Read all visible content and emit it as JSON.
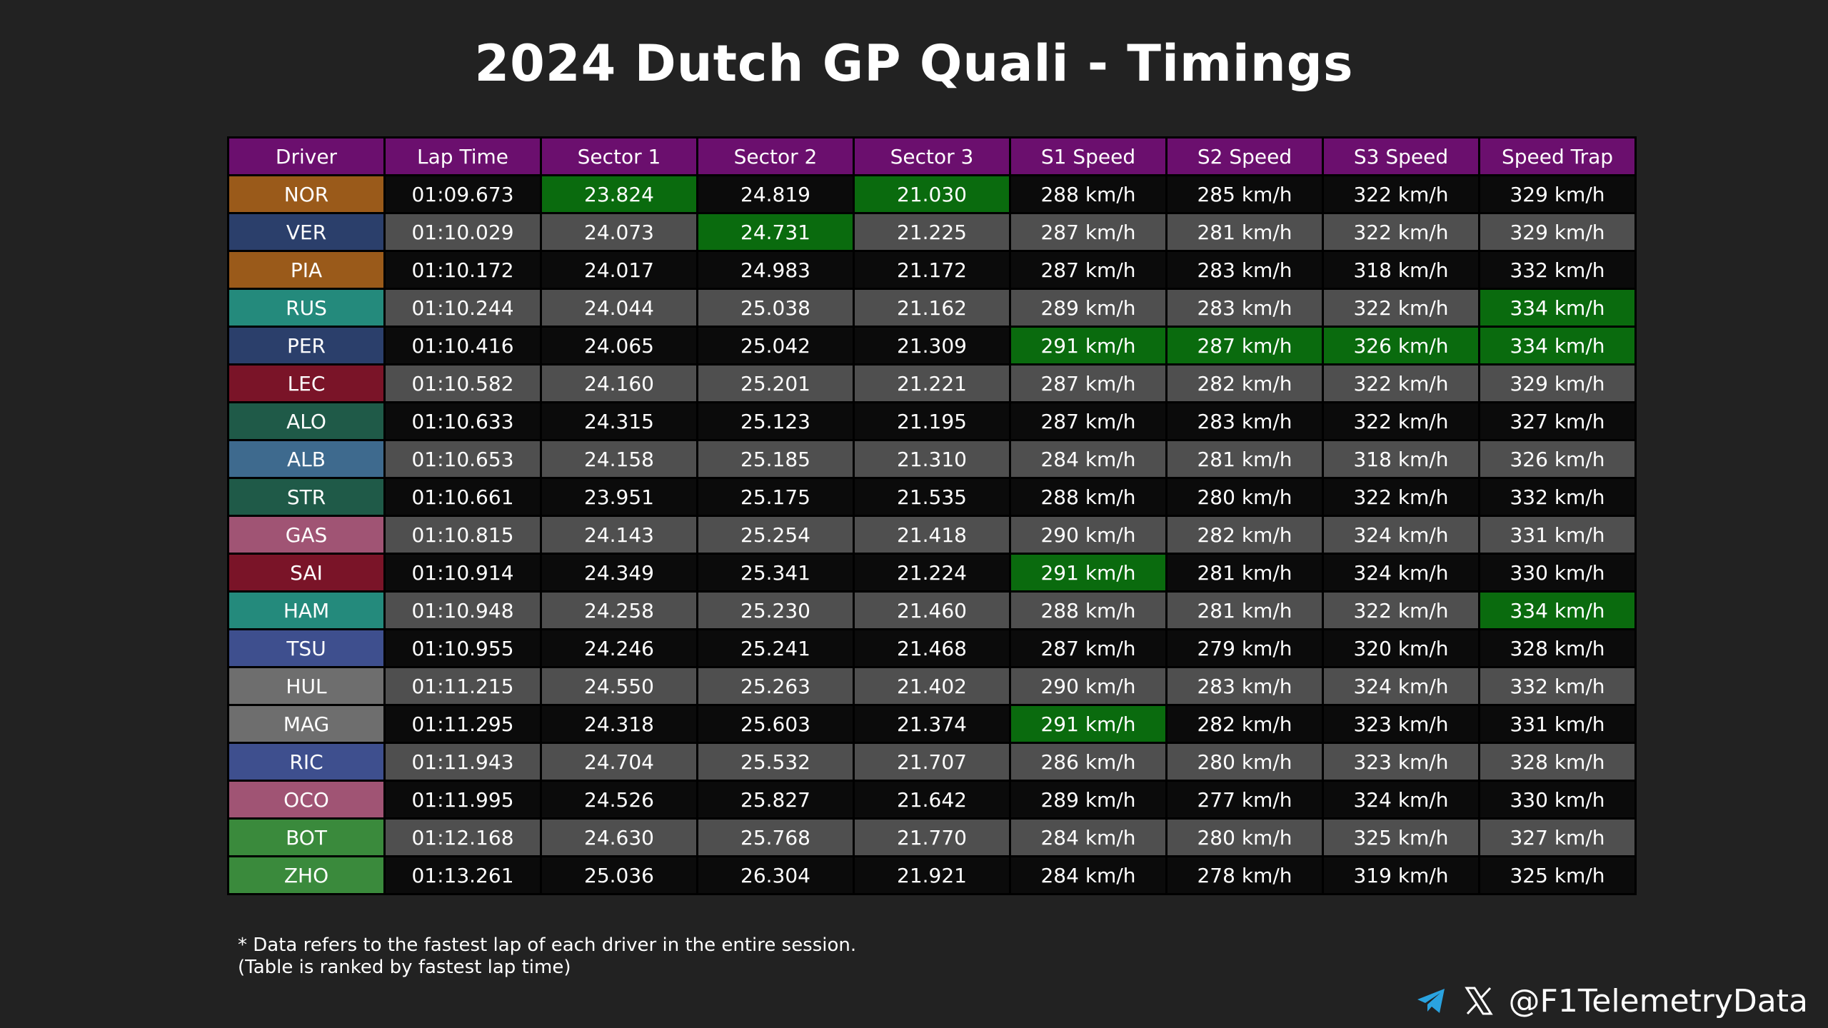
{
  "title": "2024 Dutch GP Quali - Timings",
  "colors": {
    "header_bg": "#6b0f6e",
    "best_green": "#0a6b0e",
    "row_dark": "#0b0b0b",
    "row_light": "#4f4f4f",
    "background": "#222222"
  },
  "chart_data": {
    "type": "table",
    "title": "2024 Dutch GP Quali - Timings",
    "columns": [
      "Driver",
      "Lap Time",
      "Sector 1",
      "Sector 2",
      "Sector 3",
      "S1 Speed",
      "S2 Speed",
      "S3 Speed",
      "Speed Trap"
    ],
    "rows": [
      {
        "driver": "NOR",
        "team_color": "#9a5a1a",
        "cells": [
          "01:09.673",
          "23.824",
          "24.819",
          "21.030",
          "288 km/h",
          "285 km/h",
          "322 km/h",
          "329 km/h"
        ],
        "best": [
          false,
          true,
          false,
          true,
          false,
          false,
          false,
          false
        ]
      },
      {
        "driver": "VER",
        "team_color": "#2b3f6b",
        "cells": [
          "01:10.029",
          "24.073",
          "24.731",
          "21.225",
          "287 km/h",
          "281 km/h",
          "322 km/h",
          "329 km/h"
        ],
        "best": [
          false,
          false,
          true,
          false,
          false,
          false,
          false,
          false
        ]
      },
      {
        "driver": "PIA",
        "team_color": "#9a5a1a",
        "cells": [
          "01:10.172",
          "24.017",
          "24.983",
          "21.172",
          "287 km/h",
          "283 km/h",
          "318 km/h",
          "332 km/h"
        ],
        "best": [
          false,
          false,
          false,
          false,
          false,
          false,
          false,
          false
        ]
      },
      {
        "driver": "RUS",
        "team_color": "#248a7c",
        "cells": [
          "01:10.244",
          "24.044",
          "25.038",
          "21.162",
          "289 km/h",
          "283 km/h",
          "322 km/h",
          "334 km/h"
        ],
        "best": [
          false,
          false,
          false,
          false,
          false,
          false,
          false,
          true
        ]
      },
      {
        "driver": "PER",
        "team_color": "#2b3f6b",
        "cells": [
          "01:10.416",
          "24.065",
          "25.042",
          "21.309",
          "291 km/h",
          "287 km/h",
          "326 km/h",
          "334 km/h"
        ],
        "best": [
          false,
          false,
          false,
          false,
          true,
          true,
          true,
          true
        ]
      },
      {
        "driver": "LEC",
        "team_color": "#7a1428",
        "cells": [
          "01:10.582",
          "24.160",
          "25.201",
          "21.221",
          "287 km/h",
          "282 km/h",
          "322 km/h",
          "329 km/h"
        ],
        "best": [
          false,
          false,
          false,
          false,
          false,
          false,
          false,
          false
        ]
      },
      {
        "driver": "ALO",
        "team_color": "#1f5a48",
        "cells": [
          "01:10.633",
          "24.315",
          "25.123",
          "21.195",
          "287 km/h",
          "283 km/h",
          "322 km/h",
          "327 km/h"
        ],
        "best": [
          false,
          false,
          false,
          false,
          false,
          false,
          false,
          false
        ]
      },
      {
        "driver": "ALB",
        "team_color": "#3e6a8e",
        "cells": [
          "01:10.653",
          "24.158",
          "25.185",
          "21.310",
          "284 km/h",
          "281 km/h",
          "318 km/h",
          "326 km/h"
        ],
        "best": [
          false,
          false,
          false,
          false,
          false,
          false,
          false,
          false
        ]
      },
      {
        "driver": "STR",
        "team_color": "#1f5a48",
        "cells": [
          "01:10.661",
          "23.951",
          "25.175",
          "21.535",
          "288 km/h",
          "280 km/h",
          "322 km/h",
          "332 km/h"
        ],
        "best": [
          false,
          false,
          false,
          false,
          false,
          false,
          false,
          false
        ]
      },
      {
        "driver": "GAS",
        "team_color": "#a05474",
        "cells": [
          "01:10.815",
          "24.143",
          "25.254",
          "21.418",
          "290 km/h",
          "282 km/h",
          "324 km/h",
          "331 km/h"
        ],
        "best": [
          false,
          false,
          false,
          false,
          false,
          false,
          false,
          false
        ]
      },
      {
        "driver": "SAI",
        "team_color": "#7a1428",
        "cells": [
          "01:10.914",
          "24.349",
          "25.341",
          "21.224",
          "291 km/h",
          "281 km/h",
          "324 km/h",
          "330 km/h"
        ],
        "best": [
          false,
          false,
          false,
          false,
          true,
          false,
          false,
          false
        ]
      },
      {
        "driver": "HAM",
        "team_color": "#248a7c",
        "cells": [
          "01:10.948",
          "24.258",
          "25.230",
          "21.460",
          "288 km/h",
          "281 km/h",
          "322 km/h",
          "334 km/h"
        ],
        "best": [
          false,
          false,
          false,
          false,
          false,
          false,
          false,
          true
        ]
      },
      {
        "driver": "TSU",
        "team_color": "#3e4f8e",
        "cells": [
          "01:10.955",
          "24.246",
          "25.241",
          "21.468",
          "287 km/h",
          "279 km/h",
          "320 km/h",
          "328 km/h"
        ],
        "best": [
          false,
          false,
          false,
          false,
          false,
          false,
          false,
          false
        ]
      },
      {
        "driver": "HUL",
        "team_color": "#6e6e6e",
        "cells": [
          "01:11.215",
          "24.550",
          "25.263",
          "21.402",
          "290 km/h",
          "283 km/h",
          "324 km/h",
          "332 km/h"
        ],
        "best": [
          false,
          false,
          false,
          false,
          false,
          false,
          false,
          false
        ]
      },
      {
        "driver": "MAG",
        "team_color": "#6e6e6e",
        "cells": [
          "01:11.295",
          "24.318",
          "25.603",
          "21.374",
          "291 km/h",
          "282 km/h",
          "323 km/h",
          "331 km/h"
        ],
        "best": [
          false,
          false,
          false,
          false,
          true,
          false,
          false,
          false
        ]
      },
      {
        "driver": "RIC",
        "team_color": "#3e4f8e",
        "cells": [
          "01:11.943",
          "24.704",
          "25.532",
          "21.707",
          "286 km/h",
          "280 km/h",
          "323 km/h",
          "328 km/h"
        ],
        "best": [
          false,
          false,
          false,
          false,
          false,
          false,
          false,
          false
        ]
      },
      {
        "driver": "OCO",
        "team_color": "#a05474",
        "cells": [
          "01:11.995",
          "24.526",
          "25.827",
          "21.642",
          "289 km/h",
          "277 km/h",
          "324 km/h",
          "330 km/h"
        ],
        "best": [
          false,
          false,
          false,
          false,
          false,
          false,
          false,
          false
        ]
      },
      {
        "driver": "BOT",
        "team_color": "#3a8a3c",
        "cells": [
          "01:12.168",
          "24.630",
          "25.768",
          "21.770",
          "284 km/h",
          "280 km/h",
          "325 km/h",
          "327 km/h"
        ],
        "best": [
          false,
          false,
          false,
          false,
          false,
          false,
          false,
          false
        ]
      },
      {
        "driver": "ZHO",
        "team_color": "#3a8a3c",
        "cells": [
          "01:13.261",
          "25.036",
          "26.304",
          "21.921",
          "284 km/h",
          "278 km/h",
          "319 km/h",
          "325 km/h"
        ],
        "best": [
          false,
          false,
          false,
          false,
          false,
          false,
          false,
          false
        ]
      }
    ]
  },
  "watermark": "@F1TelemetryData",
  "footnote": {
    "line1": "* Data refers to the fastest lap of each driver in the entire session.",
    "line2": "(Table is ranked by fastest lap time)"
  },
  "brand": {
    "handle": "@F1TelemetryData",
    "icons": [
      "telegram-icon",
      "x-icon"
    ]
  }
}
